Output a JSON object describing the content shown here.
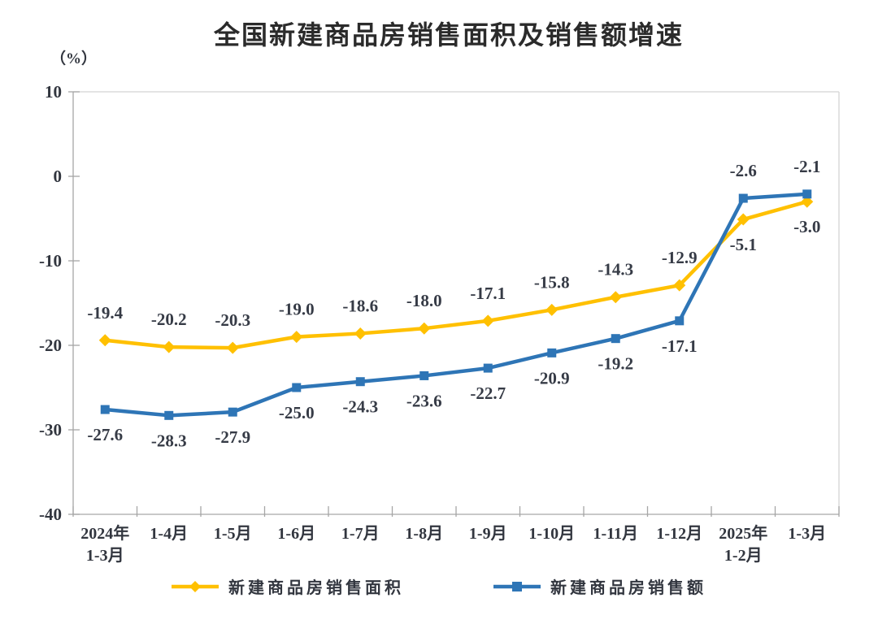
{
  "chart_data": {
    "type": "line",
    "title": "全国新建商品房销售面积及销售额增速",
    "unit_label": "（%）",
    "categories": [
      "2024年\n1-3月",
      "1-4月",
      "1-5月",
      "1-6月",
      "1-7月",
      "1-8月",
      "1-9月",
      "1-10月",
      "1-11月",
      "1-12月",
      "2025年\n1-2月",
      "1-3月"
    ],
    "y_ticks": [
      10,
      0,
      -10,
      -20,
      -30,
      -40
    ],
    "ylim": [
      -40,
      10
    ],
    "grid": false,
    "legend_position": "bottom",
    "axis_color": "#a6a6a6",
    "border_color": "#d4d4d4",
    "series": [
      {
        "name": "新建商品房销售面积",
        "color": "#FFC000",
        "marker": "diamond",
        "values": [
          -19.4,
          -20.2,
          -20.3,
          -19.0,
          -18.6,
          -18.0,
          -17.1,
          -15.8,
          -14.3,
          -12.9,
          -5.1,
          -3.0
        ],
        "label_sides": [
          "above",
          "above",
          "above",
          "above",
          "above",
          "above",
          "above",
          "above",
          "above",
          "above",
          "below",
          "below"
        ]
      },
      {
        "name": "新建商品房销售额",
        "color": "#2E75B6",
        "marker": "square",
        "values": [
          -27.6,
          -28.3,
          -27.9,
          -25.0,
          -24.3,
          -23.6,
          -22.7,
          -20.9,
          -19.2,
          -17.1,
          -2.6,
          -2.1
        ],
        "label_sides": [
          "below",
          "below",
          "below",
          "below",
          "below",
          "below",
          "below",
          "below",
          "below",
          "below",
          "above",
          "above"
        ]
      }
    ]
  }
}
